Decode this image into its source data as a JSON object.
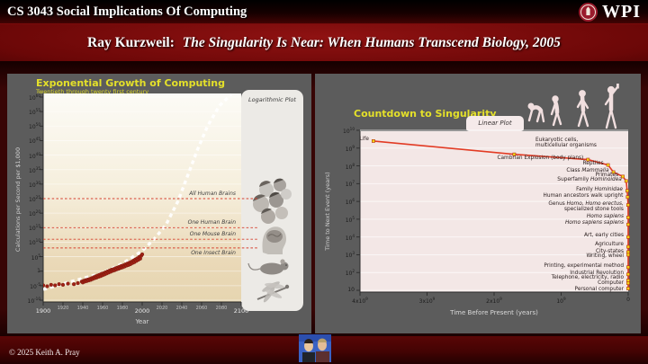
{
  "header": {
    "course": "CS 3043 Social Implications Of Computing",
    "wpi": "WPI",
    "title_prefix": "Ray Kurzweil:",
    "title_italic": "The Singularity Is Near: When Humans Transcend Biology, 2005"
  },
  "footer": {
    "copyright": "© 2025 Keith A. Pray"
  },
  "colors": {
    "accent_yellow": "#e4e02a",
    "panel_gray": "#5c5c5c",
    "right_plot_bg": "#f3e7e6",
    "red_line": "#e23b24",
    "marker_yellow": "#f2d714",
    "dot_red": "#a02114",
    "dashed_red": "#d5402f",
    "trend_white": "#ffffff"
  },
  "chart_data": [
    {
      "type": "scatter",
      "title": "Exponential Growth of Computing",
      "subtitle": "Twentieth through twenty first century",
      "plot_style_label": "Logarithmic Plot",
      "xlabel": "Year",
      "ylabel": "Calculations per Second per $1,000",
      "xlim": [
        1900,
        2100
      ],
      "x_ticks": [
        1900,
        1920,
        1940,
        1960,
        1980,
        2000,
        2020,
        2040,
        2060,
        2080,
        2100
      ],
      "y_tick_exponents": [
        60,
        55,
        50,
        45,
        40,
        35,
        30,
        25,
        20,
        15,
        10,
        5,
        0,
        -5,
        -10
      ],
      "thresholds": [
        {
          "label": "All Human Brains",
          "exponent": 25
        },
        {
          "label": "One Human Brain",
          "exponent": 15
        },
        {
          "label": "One Mouse Brain",
          "exponent": 11
        },
        {
          "label": "One Insect Brain",
          "exponent": 8,
          "label_below": true
        }
      ],
      "trend_exponential": [
        [
          1900,
          -6.3
        ],
        [
          1930,
          -3.4
        ],
        [
          1960,
          -0.6
        ],
        [
          1980,
          2.6
        ],
        [
          2000,
          7
        ],
        [
          2012,
          11
        ],
        [
          2024,
          16
        ],
        [
          2036,
          24
        ],
        [
          2046,
          33
        ],
        [
          2056,
          42
        ],
        [
          2066,
          50
        ],
        [
          2078,
          57
        ],
        [
          2090,
          61
        ]
      ],
      "points": [
        [
          1900,
          -4.9
        ],
        [
          1904,
          -5.2
        ],
        [
          1908,
          -4.7
        ],
        [
          1912,
          -4.9
        ],
        [
          1916,
          -4.5
        ],
        [
          1920,
          -4.7
        ],
        [
          1925,
          -4.3
        ],
        [
          1931,
          -4.5
        ],
        [
          1935,
          -4.1
        ],
        [
          1939,
          -3.6
        ],
        [
          1940,
          -3.9
        ],
        [
          1941,
          -3.3
        ],
        [
          1942,
          -3.6
        ],
        [
          1943,
          -3.1
        ],
        [
          1944,
          -3.4
        ],
        [
          1945,
          -2.9
        ],
        [
          1946,
          -3.2
        ],
        [
          1947,
          -2.7
        ],
        [
          1948,
          -3.0
        ],
        [
          1949,
          -2.4
        ],
        [
          1950,
          -2.7
        ],
        [
          1951,
          -2.1
        ],
        [
          1952,
          -2.4
        ],
        [
          1953,
          -1.8
        ],
        [
          1954,
          -2.2
        ],
        [
          1955,
          -1.5
        ],
        [
          1956,
          -1.9
        ],
        [
          1957,
          -1.2
        ],
        [
          1958,
          -1.7
        ],
        [
          1959,
          -0.9
        ],
        [
          1960,
          -1.4
        ],
        [
          1961,
          -0.7
        ],
        [
          1962,
          -1.1
        ],
        [
          1963,
          -0.4
        ],
        [
          1964,
          -0.8
        ],
        [
          1965,
          -0.1
        ],
        [
          1966,
          -0.5
        ],
        [
          1967,
          0.2
        ],
        [
          1968,
          -0.2
        ],
        [
          1969,
          0.5
        ],
        [
          1970,
          0.1
        ],
        [
          1971,
          0.7
        ],
        [
          1972,
          0.3
        ],
        [
          1973,
          1.0
        ],
        [
          1974,
          0.6
        ],
        [
          1975,
          1.2
        ],
        [
          1976,
          0.8
        ],
        [
          1977,
          1.5
        ],
        [
          1978,
          1.1
        ],
        [
          1979,
          1.8
        ],
        [
          1980,
          1.3
        ],
        [
          1981,
          2.0
        ],
        [
          1982,
          1.6
        ],
        [
          1983,
          2.3
        ],
        [
          1984,
          1.9
        ],
        [
          1985,
          2.6
        ],
        [
          1986,
          2.1
        ],
        [
          1987,
          2.9
        ],
        [
          1988,
          2.4
        ],
        [
          1989,
          3.2
        ],
        [
          1990,
          2.8
        ],
        [
          1991,
          3.6
        ],
        [
          1992,
          3.1
        ],
        [
          1993,
          4.0
        ],
        [
          1994,
          3.5
        ],
        [
          1995,
          4.4
        ],
        [
          1996,
          3.9
        ],
        [
          1997,
          4.9
        ],
        [
          1998,
          4.3
        ],
        [
          1999,
          5.3
        ],
        [
          2000,
          5.8
        ]
      ]
    },
    {
      "type": "line",
      "title": "Countdown to Singularity",
      "plot_style_label": "Linear Plot",
      "xlabel": "Time Before Present (years)",
      "ylabel": "Time to Next Event (years)",
      "x_ticks": [
        {
          "label": "4x10",
          "exp": "9",
          "value": 4000000000.0
        },
        {
          "label": "3x10",
          "exp": "9",
          "value": 3000000000.0
        },
        {
          "label": "2x10",
          "exp": "9",
          "value": 2000000000.0
        },
        {
          "label": "10",
          "exp": "9",
          "value": 1000000000.0
        },
        {
          "label": "0",
          "exp": "",
          "value": 0
        }
      ],
      "y_tick_exponents": [
        10,
        9,
        8,
        7,
        6,
        5,
        4,
        3,
        2,
        1
      ],
      "italic_terms": [
        "Mammalia",
        "Hominoidea",
        "Hominidae",
        "Homo",
        "erectus",
        "sapiens"
      ],
      "events": [
        {
          "label": "Life",
          "years_before_present": 3800000000.0,
          "time_to_next_event_log10": 9.4
        },
        {
          "label": "Eukaryotic cells,\nmulticellular organisms",
          "years_before_present": 1700000000.0,
          "time_to_next_event_log10": 8.65
        },
        {
          "label": "Cambrian Explosion (body plans)",
          "years_before_present": 600000000.0,
          "time_to_next_event_log10": 8.35
        },
        {
          "label": "Reptiles",
          "years_before_present": 300000000.0,
          "time_to_next_event_log10": 8.05
        },
        {
          "label": "Class Mammalia",
          "years_before_present": 220000000.0,
          "time_to_next_event_log10": 7.65
        },
        {
          "label": "Primates",
          "years_before_present": 80000000.0,
          "time_to_next_event_log10": 7.4
        },
        {
          "label": "Superfamily Hominoidea",
          "years_before_present": 30000000.0,
          "time_to_next_event_log10": 7.15
        },
        {
          "label": "Family Hominidae",
          "years_before_present": 15000000.0,
          "time_to_next_event_log10": 6.6
        },
        {
          "label": "Human ancestors walk upright",
          "years_before_present": 8000000.0,
          "time_to_next_event_log10": 6.25
        },
        {
          "label": "Genus Homo, Homo erectus,\nspecialized stone tools",
          "years_before_present": 2000000.0,
          "time_to_next_event_log10": 5.8
        },
        {
          "label": "Homo sapiens",
          "years_before_present": 500000.0,
          "time_to_next_event_log10": 5.1
        },
        {
          "label": "Homo sapiens sapiens",
          "years_before_present": 200000.0,
          "time_to_next_event_log10": 4.7
        },
        {
          "label": "Art, early cities",
          "years_before_present": 50000.0,
          "time_to_next_event_log10": 4.0
        },
        {
          "label": "Agriculture",
          "years_before_present": 12000.0,
          "time_to_next_event_log10": 3.45
        },
        {
          "label": "City-states",
          "years_before_present": 8000.0,
          "time_to_next_event_log10": 3.15
        },
        {
          "label": "Writing, wheel",
          "years_before_present": 5000.0,
          "time_to_next_event_log10": 3.0
        },
        {
          "label": "Printing, experimental method",
          "years_before_present": 500.0,
          "time_to_next_event_log10": 2.3
        },
        {
          "label": "Industrial Revolution",
          "years_before_present": 250.0,
          "time_to_next_event_log10": 1.9
        },
        {
          "label": "Telephone,  electricity, radio",
          "years_before_present": 120.0,
          "time_to_next_event_log10": 1.55
        },
        {
          "label": "Computer",
          "years_before_present": 60.0,
          "time_to_next_event_log10": 1.4
        },
        {
          "label": "Personal computer",
          "years_before_present": 30.0,
          "time_to_next_event_log10": 1.1
        }
      ]
    }
  ]
}
